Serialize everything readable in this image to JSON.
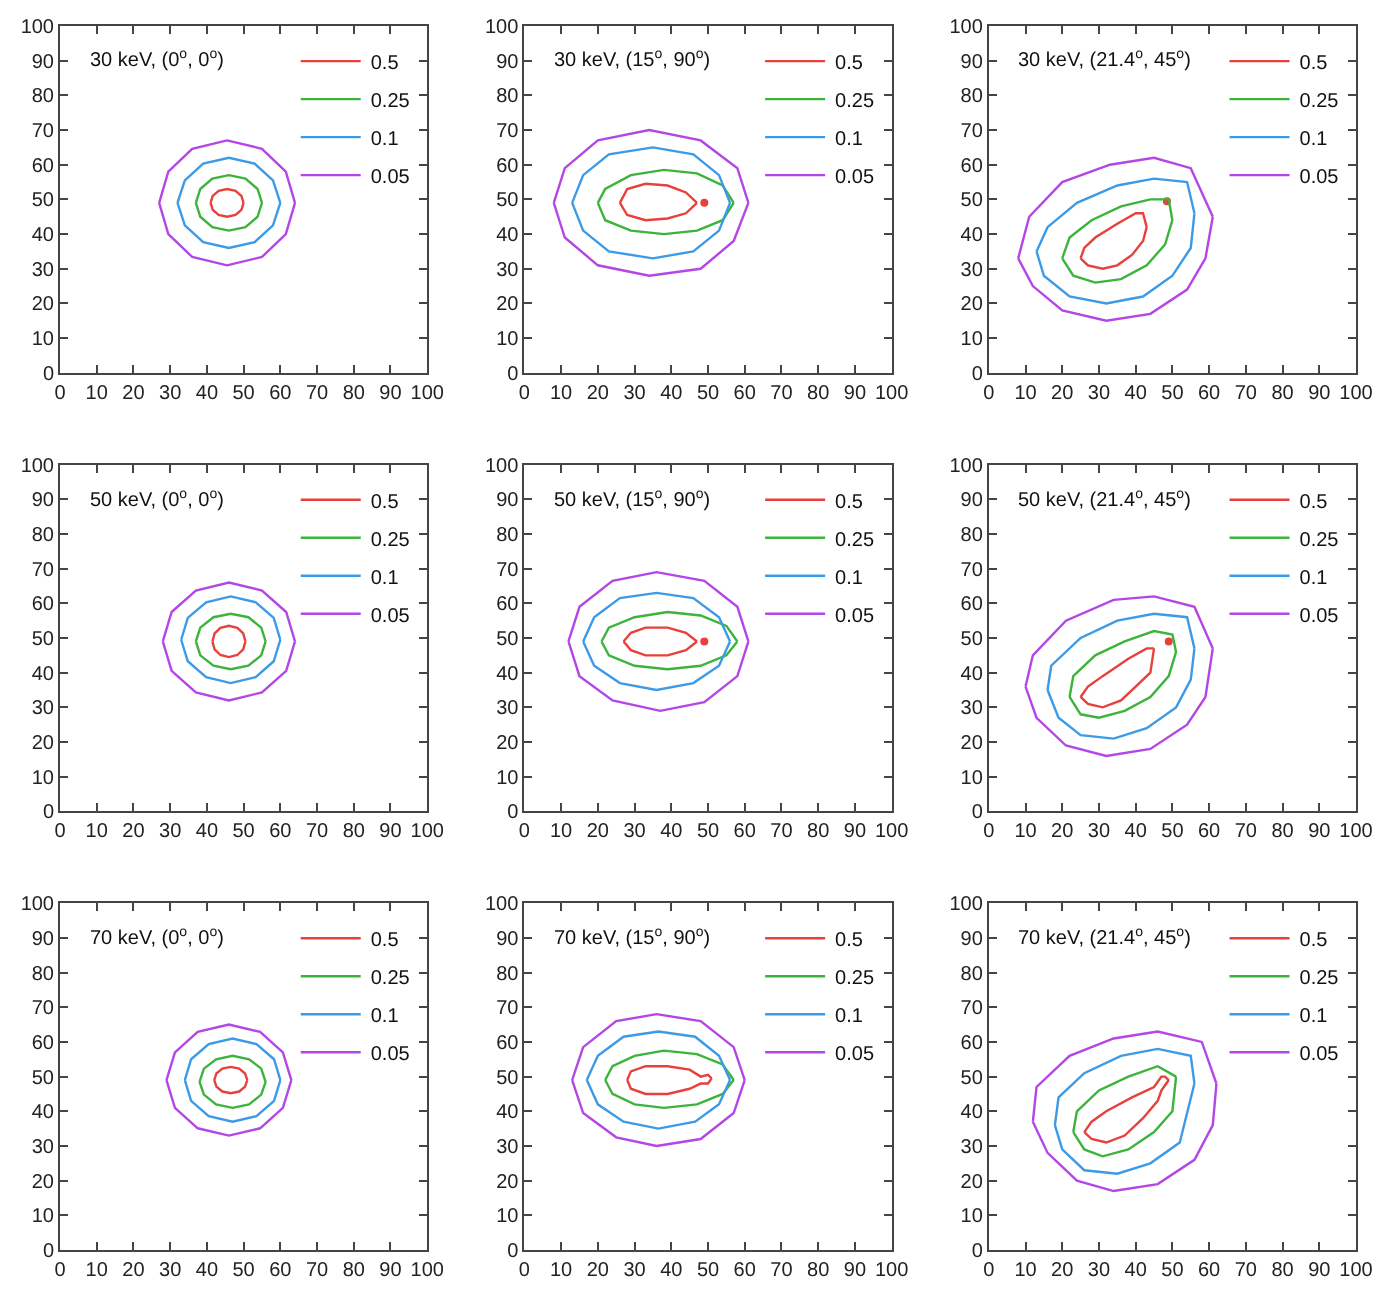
{
  "chart_data": [
    {
      "type": "line",
      "title": "30 keV, (0$^{o}$, 0$^{o}$)",
      "xlim": [
        0,
        100
      ],
      "ylim": [
        0,
        100
      ],
      "xticks": [
        0,
        10,
        20,
        30,
        40,
        50,
        60,
        70,
        80,
        90,
        100
      ],
      "yticks": [
        0,
        10,
        20,
        30,
        40,
        50,
        60,
        70,
        80,
        90,
        100
      ],
      "grid": false,
      "legend": "top right",
      "marker": "none",
      "series": [
        {
          "name": "0.5",
          "color": "#e8403a",
          "x": [
            41,
            41.6,
            43.2,
            45.5,
            47.8,
            49.4,
            50,
            null,
            41,
            41.6,
            43.2,
            45.5,
            47.8,
            49.4,
            50
          ],
          "values": [
            49,
            51,
            52.5,
            53,
            52.5,
            51,
            49,
            null,
            49,
            47,
            45.5,
            45,
            45.5,
            47,
            49
          ]
        },
        {
          "name": "0.25",
          "color": "#3cb43c",
          "x": [
            37,
            38.2,
            41.5,
            46,
            50.5,
            53.8,
            55,
            null,
            37,
            38.2,
            41.5,
            46,
            50.5,
            53.8,
            55
          ],
          "values": [
            49,
            53,
            56,
            57,
            56,
            53,
            49,
            null,
            49,
            45,
            42,
            41,
            42,
            45,
            49
          ]
        },
        {
          "name": "0.1",
          "color": "#3c9ae6",
          "x": [
            32,
            34,
            39,
            46,
            53,
            58,
            60,
            null,
            32,
            34,
            39,
            46,
            53,
            58,
            60
          ],
          "values": [
            49,
            55.5,
            60.3,
            62,
            60.3,
            55.5,
            49,
            null,
            49,
            42.5,
            37.7,
            36,
            37.7,
            42.5,
            49
          ]
        },
        {
          "name": "0.05",
          "color": "#b446e6",
          "x": [
            27,
            29.5,
            36,
            45.5,
            55,
            61.5,
            64,
            null,
            27,
            29.5,
            36,
            45.5,
            55,
            61.5,
            64
          ],
          "values": [
            49,
            58,
            64.6,
            67,
            64.6,
            58,
            49,
            null,
            49,
            40,
            33.4,
            31,
            33.4,
            40,
            49
          ]
        }
      ]
    },
    {
      "type": "line",
      "title": "30 keV, (15$^{o}$, 90$^{o}$)",
      "xlim": [
        0,
        100
      ],
      "ylim": [
        0,
        100
      ],
      "xticks": [
        0,
        10,
        20,
        30,
        40,
        50,
        60,
        70,
        80,
        90,
        100
      ],
      "yticks": [
        0,
        10,
        20,
        30,
        40,
        50,
        60,
        70,
        80,
        90,
        100
      ],
      "grid": false,
      "legend": "top right",
      "marker": "none",
      "series": [
        {
          "name": "0.5",
          "color": "#e8403a",
          "x": [
            26,
            28,
            33,
            39,
            44,
            47,
            null,
            26,
            28,
            33,
            39,
            44,
            47
          ],
          "values": [
            49,
            53,
            54.5,
            54,
            52,
            49,
            null,
            49,
            45.5,
            44,
            44.5,
            46,
            49
          ]
        },
        {
          "type": "scatter",
          "marker": "circle",
          "color": "#e8403a",
          "x": [
            49
          ],
          "values": [
            49
          ]
        },
        {
          "name": "0.25",
          "color": "#3cb43c",
          "x": [
            20,
            22,
            29,
            38,
            47,
            54,
            57,
            null,
            20,
            22,
            29,
            38,
            47,
            54,
            57
          ],
          "values": [
            49,
            53,
            57,
            58.5,
            57.5,
            54,
            49,
            null,
            49,
            44,
            41,
            40,
            41,
            44,
            49
          ]
        },
        {
          "name": "0.1",
          "color": "#3c9ae6",
          "x": [
            13,
            16,
            23,
            35,
            46,
            53,
            56,
            null,
            13,
            16,
            23,
            35,
            46,
            53,
            56
          ],
          "values": [
            49,
            57,
            63,
            65,
            63,
            57,
            49,
            null,
            49,
            41,
            35,
            33,
            35,
            41,
            49
          ]
        },
        {
          "name": "0.05",
          "color": "#b446e6",
          "x": [
            8,
            11,
            20,
            34,
            48,
            58,
            61,
            null,
            8,
            11,
            20,
            34,
            48,
            57,
            61
          ],
          "values": [
            49,
            59,
            67,
            70,
            67,
            59,
            49,
            null,
            49,
            39,
            31,
            28,
            30,
            38,
            49
          ]
        }
      ]
    },
    {
      "type": "line",
      "title": "30 keV, (21.4$^{o}$, 45$^{o}$)",
      "xlim": [
        0,
        100
      ],
      "ylim": [
        0,
        100
      ],
      "xticks": [
        0,
        10,
        20,
        30,
        40,
        50,
        60,
        70,
        80,
        90,
        100
      ],
      "yticks": [
        0,
        10,
        20,
        30,
        40,
        50,
        60,
        70,
        80,
        90,
        100
      ],
      "grid": false,
      "legend": "top right",
      "marker": "none",
      "series": [
        {
          "name": "0.5",
          "color": "#e8403a",
          "x": [
            25,
            26,
            29,
            35,
            40,
            42,
            43,
            null,
            25,
            27,
            31,
            35,
            39,
            42,
            43
          ],
          "values": [
            33,
            36,
            39,
            43,
            46,
            46,
            42,
            null,
            33,
            31,
            30,
            31,
            34,
            38,
            42
          ]
        },
        {
          "type": "scatter",
          "marker": "circle",
          "color": "#e8403a",
          "x": [
            48.5
          ],
          "values": [
            49.5
          ]
        },
        {
          "name": "0.25",
          "color": "#3cb43c",
          "x": [
            20,
            22,
            28,
            36,
            44,
            49,
            50,
            null,
            20,
            23,
            29,
            36,
            43,
            48,
            50
          ],
          "values": [
            33,
            39,
            44,
            48,
            50,
            50,
            44,
            null,
            33,
            28,
            26,
            27,
            31,
            37,
            44
          ]
        },
        {
          "name": "0.1",
          "color": "#3c9ae6",
          "x": [
            13,
            16,
            24,
            35,
            45,
            54,
            56,
            null,
            13,
            15,
            22,
            32,
            42,
            50,
            55,
            56
          ],
          "values": [
            35,
            42,
            49,
            54,
            56,
            55,
            46,
            null,
            35,
            28,
            22,
            20,
            22,
            28,
            36,
            46
          ]
        },
        {
          "name": "0.05",
          "color": "#b446e6",
          "x": [
            8,
            11,
            20,
            33,
            45,
            55,
            61,
            null,
            8,
            12,
            20,
            32,
            44,
            54,
            59,
            61
          ],
          "values": [
            33,
            45,
            55,
            60,
            62,
            59,
            45,
            null,
            33,
            25,
            18,
            15,
            17,
            24,
            33,
            45
          ]
        }
      ]
    },
    {
      "type": "line",
      "title": "50 keV, (0$^{o}$, 0$^{o}$)",
      "xlim": [
        0,
        100
      ],
      "ylim": [
        0,
        100
      ],
      "xticks": [
        0,
        10,
        20,
        30,
        40,
        50,
        60,
        70,
        80,
        90,
        100
      ],
      "yticks": [
        0,
        10,
        20,
        30,
        40,
        50,
        60,
        70,
        80,
        90,
        100
      ],
      "grid": false,
      "legend": "top right",
      "marker": "none",
      "series": [
        {
          "name": "0.5",
          "color": "#e8403a",
          "x": [
            41.5,
            42.1,
            43.7,
            46,
            48.3,
            49.9,
            50.5,
            null,
            41.5,
            42.1,
            43.7,
            46,
            48.3,
            49.9,
            50.5
          ],
          "values": [
            49,
            51.3,
            52.9,
            53.5,
            52.9,
            51.3,
            49,
            null,
            49,
            46.7,
            45.1,
            44.5,
            45.1,
            46.7,
            49
          ]
        },
        {
          "name": "0.25",
          "color": "#3cb43c",
          "x": [
            37,
            38.2,
            41.8,
            46.5,
            51.3,
            54.8,
            56,
            null,
            37,
            38.2,
            41.8,
            46.5,
            51.3,
            54.8,
            56
          ],
          "values": [
            49,
            53,
            56,
            57,
            56,
            53,
            49,
            null,
            49,
            45,
            42,
            41,
            42,
            45,
            49
          ]
        },
        {
          "name": "0.1",
          "color": "#3c9ae6",
          "x": [
            33,
            34.8,
            39.8,
            46.5,
            53.3,
            58.2,
            60,
            null,
            33,
            34.8,
            39.8,
            46.5,
            53.3,
            58.2,
            60
          ],
          "values": [
            49.5,
            55.8,
            60.3,
            62,
            60.3,
            55.8,
            49.5,
            null,
            49.5,
            43.3,
            38.7,
            37,
            38.7,
            43.3,
            49.5
          ]
        },
        {
          "name": "0.05",
          "color": "#b446e6",
          "x": [
            28,
            30.4,
            37,
            46,
            55,
            61.6,
            64,
            null,
            28,
            30.4,
            37,
            46,
            55,
            61.6,
            64
          ],
          "values": [
            49,
            57.5,
            63.7,
            66,
            63.7,
            57.5,
            49,
            null,
            49,
            40.5,
            34.3,
            32,
            34.3,
            40.5,
            49
          ]
        }
      ]
    },
    {
      "type": "line",
      "title": "50 keV, (15$^{o}$, 90$^{o}$)",
      "xlim": [
        0,
        100
      ],
      "ylim": [
        0,
        100
      ],
      "xticks": [
        0,
        10,
        20,
        30,
        40,
        50,
        60,
        70,
        80,
        90,
        100
      ],
      "yticks": [
        0,
        10,
        20,
        30,
        40,
        50,
        60,
        70,
        80,
        90,
        100
      ],
      "grid": false,
      "legend": "top right",
      "marker": "none",
      "series": [
        {
          "name": "0.5",
          "color": "#e8403a",
          "x": [
            27,
            29,
            33,
            39,
            44,
            47,
            null,
            27,
            29,
            33,
            39,
            44,
            47
          ],
          "values": [
            49,
            51.5,
            53,
            53,
            51.5,
            49,
            null,
            49,
            46.5,
            45,
            45,
            46.5,
            49
          ]
        },
        {
          "type": "scatter",
          "marker": "circle",
          "color": "#e8403a",
          "x": [
            49
          ],
          "values": [
            49
          ]
        },
        {
          "name": "0.25",
          "color": "#3cb43c",
          "x": [
            21,
            23,
            30,
            39,
            48,
            55,
            58,
            null,
            21,
            23,
            30,
            39,
            48,
            55,
            58
          ],
          "values": [
            49,
            53,
            56,
            57.5,
            56.5,
            53.5,
            49,
            null,
            49,
            45,
            42,
            41,
            42,
            45,
            49
          ]
        },
        {
          "name": "0.1",
          "color": "#3c9ae6",
          "x": [
            16,
            19,
            26,
            36,
            46,
            53,
            56,
            null,
            16,
            19,
            26,
            36,
            46,
            53,
            56
          ],
          "values": [
            49,
            56,
            61.5,
            63,
            61.5,
            56,
            49,
            null,
            49,
            42,
            37,
            35,
            37,
            42,
            49
          ]
        },
        {
          "name": "0.05",
          "color": "#b446e6",
          "x": [
            12,
            15,
            24,
            36,
            49,
            58,
            61,
            null,
            12,
            15,
            24,
            37,
            49,
            58,
            61
          ],
          "values": [
            49,
            59,
            66.5,
            69,
            66.5,
            59,
            49,
            null,
            49,
            39,
            32,
            29,
            31.5,
            39,
            49
          ]
        }
      ]
    },
    {
      "type": "line",
      "title": "50 keV, (21.4$^{o}$, 45$^{o}$)",
      "xlim": [
        0,
        100
      ],
      "ylim": [
        0,
        100
      ],
      "xticks": [
        0,
        10,
        20,
        30,
        40,
        50,
        60,
        70,
        80,
        90,
        100
      ],
      "yticks": [
        0,
        10,
        20,
        30,
        40,
        50,
        60,
        70,
        80,
        90,
        100
      ],
      "grid": false,
      "legend": "top right",
      "marker": "none",
      "series": [
        {
          "name": "0.5",
          "color": "#e8403a",
          "x": [
            25,
            27,
            31,
            38,
            43,
            45,
            null,
            25,
            27,
            31,
            36,
            40,
            44,
            45
          ],
          "values": [
            33,
            36,
            39,
            44,
            47,
            47,
            null,
            33,
            31,
            30,
            32,
            36,
            40,
            47
          ]
        },
        {
          "type": "scatter",
          "marker": "circle",
          "color": "#e8403a",
          "x": [
            49
          ],
          "values": [
            49
          ]
        },
        {
          "name": "0.25",
          "color": "#3cb43c",
          "x": [
            22,
            23,
            29,
            37,
            45,
            50,
            51,
            null,
            22,
            25,
            30,
            37,
            44,
            49,
            51
          ],
          "values": [
            33,
            39,
            45,
            49,
            52,
            51,
            46,
            null,
            33,
            28,
            27,
            29,
            33,
            39,
            46
          ]
        },
        {
          "name": "0.1",
          "color": "#3c9ae6",
          "x": [
            16,
            17,
            25,
            35,
            45,
            54,
            56,
            null,
            16,
            19,
            25,
            34,
            43,
            51,
            55,
            56
          ],
          "values": [
            35,
            42,
            50,
            55,
            57,
            56,
            47,
            null,
            35,
            27,
            22,
            21,
            24,
            30,
            38,
            47
          ]
        },
        {
          "name": "0.05",
          "color": "#b446e6",
          "x": [
            10,
            12,
            21,
            34,
            45,
            56,
            61,
            null,
            10,
            13,
            21,
            32,
            44,
            54,
            59,
            61
          ],
          "values": [
            36,
            45,
            55,
            61,
            62,
            59,
            47,
            null,
            36,
            27,
            19,
            16,
            18,
            25,
            33,
            47
          ]
        }
      ]
    },
    {
      "type": "line",
      "title": "70 keV, (0$^{o}$, 0$^{o}$)",
      "xlim": [
        0,
        100
      ],
      "ylim": [
        0,
        100
      ],
      "xticks": [
        0,
        10,
        20,
        30,
        40,
        50,
        60,
        70,
        80,
        90,
        100
      ],
      "yticks": [
        0,
        10,
        20,
        30,
        40,
        50,
        60,
        70,
        80,
        90,
        100
      ],
      "grid": false,
      "legend": "top right",
      "marker": "none",
      "series": [
        {
          "name": "0.5",
          "color": "#e8403a",
          "x": [
            42,
            42.6,
            44.2,
            46.5,
            48.8,
            50.4,
            51,
            null,
            42,
            42.6,
            44.2,
            46.5,
            48.8,
            50.4,
            51
          ],
          "values": [
            49,
            50.9,
            52.3,
            52.8,
            52.3,
            50.9,
            49,
            null,
            49,
            47.1,
            45.7,
            45.2,
            45.7,
            47.1,
            49
          ]
        },
        {
          "name": "0.25",
          "color": "#3cb43c",
          "x": [
            38,
            39.2,
            42.5,
            47,
            51.5,
            54.8,
            56,
            null,
            38,
            39.2,
            42.5,
            47,
            51.5,
            54.8,
            56
          ],
          "values": [
            48.5,
            52.3,
            55,
            56,
            55,
            52.3,
            48.5,
            null,
            48.5,
            44.8,
            42,
            41,
            42,
            44.8,
            48.5
          ]
        },
        {
          "name": "0.1",
          "color": "#3c9ae6",
          "x": [
            34,
            35.7,
            40.5,
            47,
            53.5,
            58.3,
            60,
            null,
            34,
            35.7,
            40.5,
            47,
            53.5,
            58.3,
            60
          ],
          "values": [
            49,
            55,
            59.4,
            61,
            59.4,
            55,
            49,
            null,
            49,
            43,
            38.6,
            37,
            38.6,
            43,
            49
          ]
        },
        {
          "name": "0.05",
          "color": "#b446e6",
          "x": [
            29,
            31.3,
            37.5,
            46,
            54.5,
            60.7,
            63,
            null,
            29,
            31.3,
            37.5,
            46,
            54.5,
            60.7,
            63
          ],
          "values": [
            49,
            57,
            62.9,
            65,
            62.9,
            57,
            49,
            null,
            49,
            41,
            35.1,
            33,
            35.1,
            41,
            49
          ]
        }
      ]
    },
    {
      "type": "line",
      "title": "70 keV, (15$^{o}$, 90$^{o}$)",
      "xlim": [
        0,
        100
      ],
      "ylim": [
        0,
        100
      ],
      "xticks": [
        0,
        10,
        20,
        30,
        40,
        50,
        60,
        70,
        80,
        90,
        100
      ],
      "yticks": [
        0,
        10,
        20,
        30,
        40,
        50,
        60,
        70,
        80,
        90,
        100
      ],
      "grid": false,
      "legend": "top right",
      "marker": "none",
      "series": [
        {
          "name": "0.5",
          "color": "#e8403a",
          "x": [
            28,
            29,
            33,
            39,
            45,
            48,
            50,
            51,
            null,
            28,
            29,
            33,
            39,
            45,
            48,
            50,
            51
          ],
          "values": [
            49,
            51.5,
            53,
            53,
            52,
            50,
            50.5,
            49.5,
            null,
            49,
            46.5,
            45,
            45,
            46.5,
            48,
            48,
            49.5
          ]
        },
        {
          "name": "0.25",
          "color": "#3cb43c",
          "x": [
            22,
            24,
            30,
            38,
            47,
            54,
            57,
            null,
            22,
            24,
            30,
            38,
            47,
            54,
            57
          ],
          "values": [
            49,
            53,
            56,
            57.5,
            56.5,
            53.5,
            49,
            null,
            49,
            45,
            42,
            41,
            42,
            45,
            49
          ]
        },
        {
          "name": "0.1",
          "color": "#3c9ae6",
          "x": [
            17,
            20,
            27,
            36.5,
            46.5,
            53,
            56,
            null,
            17,
            20,
            27,
            36.5,
            46.5,
            53,
            56
          ],
          "values": [
            49,
            56,
            61.5,
            63,
            61.5,
            56,
            49,
            null,
            49,
            42,
            37,
            35,
            37,
            42,
            49
          ]
        },
        {
          "name": "0.05",
          "color": "#b446e6",
          "x": [
            13,
            16,
            25,
            36,
            48,
            57,
            60,
            null,
            13,
            16,
            25,
            36,
            48,
            57,
            60
          ],
          "values": [
            49,
            58.5,
            66,
            68,
            66,
            58.5,
            49,
            null,
            49,
            39.5,
            32.5,
            30,
            32,
            39.5,
            49
          ]
        }
      ]
    },
    {
      "type": "line",
      "title": "70 keV, (21.4$^{o}$, 45$^{o}$)",
      "xlim": [
        0,
        100
      ],
      "ylim": [
        0,
        100
      ],
      "xticks": [
        0,
        10,
        20,
        30,
        40,
        50,
        60,
        70,
        80,
        90,
        100
      ],
      "yticks": [
        0,
        10,
        20,
        30,
        40,
        50,
        60,
        70,
        80,
        90,
        100
      ],
      "grid": false,
      "legend": "top right",
      "marker": "none",
      "series": [
        {
          "name": "0.5",
          "color": "#e8403a",
          "x": [
            26,
            28,
            32,
            39,
            45,
            47,
            48,
            49,
            null,
            26,
            28,
            32,
            37,
            42,
            46,
            47,
            49
          ],
          "values": [
            34,
            37,
            40,
            44,
            47,
            50,
            50,
            49,
            null,
            34,
            32,
            31,
            33,
            38,
            43,
            46,
            49
          ]
        },
        {
          "name": "0.25",
          "color": "#3cb43c",
          "x": [
            23,
            24,
            30,
            38,
            46,
            51,
            null,
            23,
            26,
            31,
            38,
            45,
            50,
            51
          ],
          "values": [
            34,
            40,
            46,
            50,
            53,
            50,
            null,
            34,
            29,
            27,
            29,
            34,
            40,
            50
          ]
        },
        {
          "name": "0.1",
          "color": "#3c9ae6",
          "x": [
            18,
            19,
            26,
            36,
            46,
            55,
            56,
            null,
            18,
            20,
            26,
            35,
            44,
            52,
            56
          ],
          "values": [
            36,
            44,
            51,
            56,
            58,
            56,
            48,
            null,
            36,
            29,
            23,
            22,
            25,
            31,
            48
          ]
        },
        {
          "name": "0.05",
          "color": "#b446e6",
          "x": [
            12,
            13,
            22,
            34,
            46,
            58,
            62,
            null,
            12,
            16,
            24,
            34,
            46,
            56,
            61,
            62
          ],
          "values": [
            37,
            47,
            56,
            61,
            63,
            60,
            48,
            null,
            37,
            28,
            20,
            17,
            19,
            26,
            36,
            48
          ]
        }
      ]
    }
  ]
}
